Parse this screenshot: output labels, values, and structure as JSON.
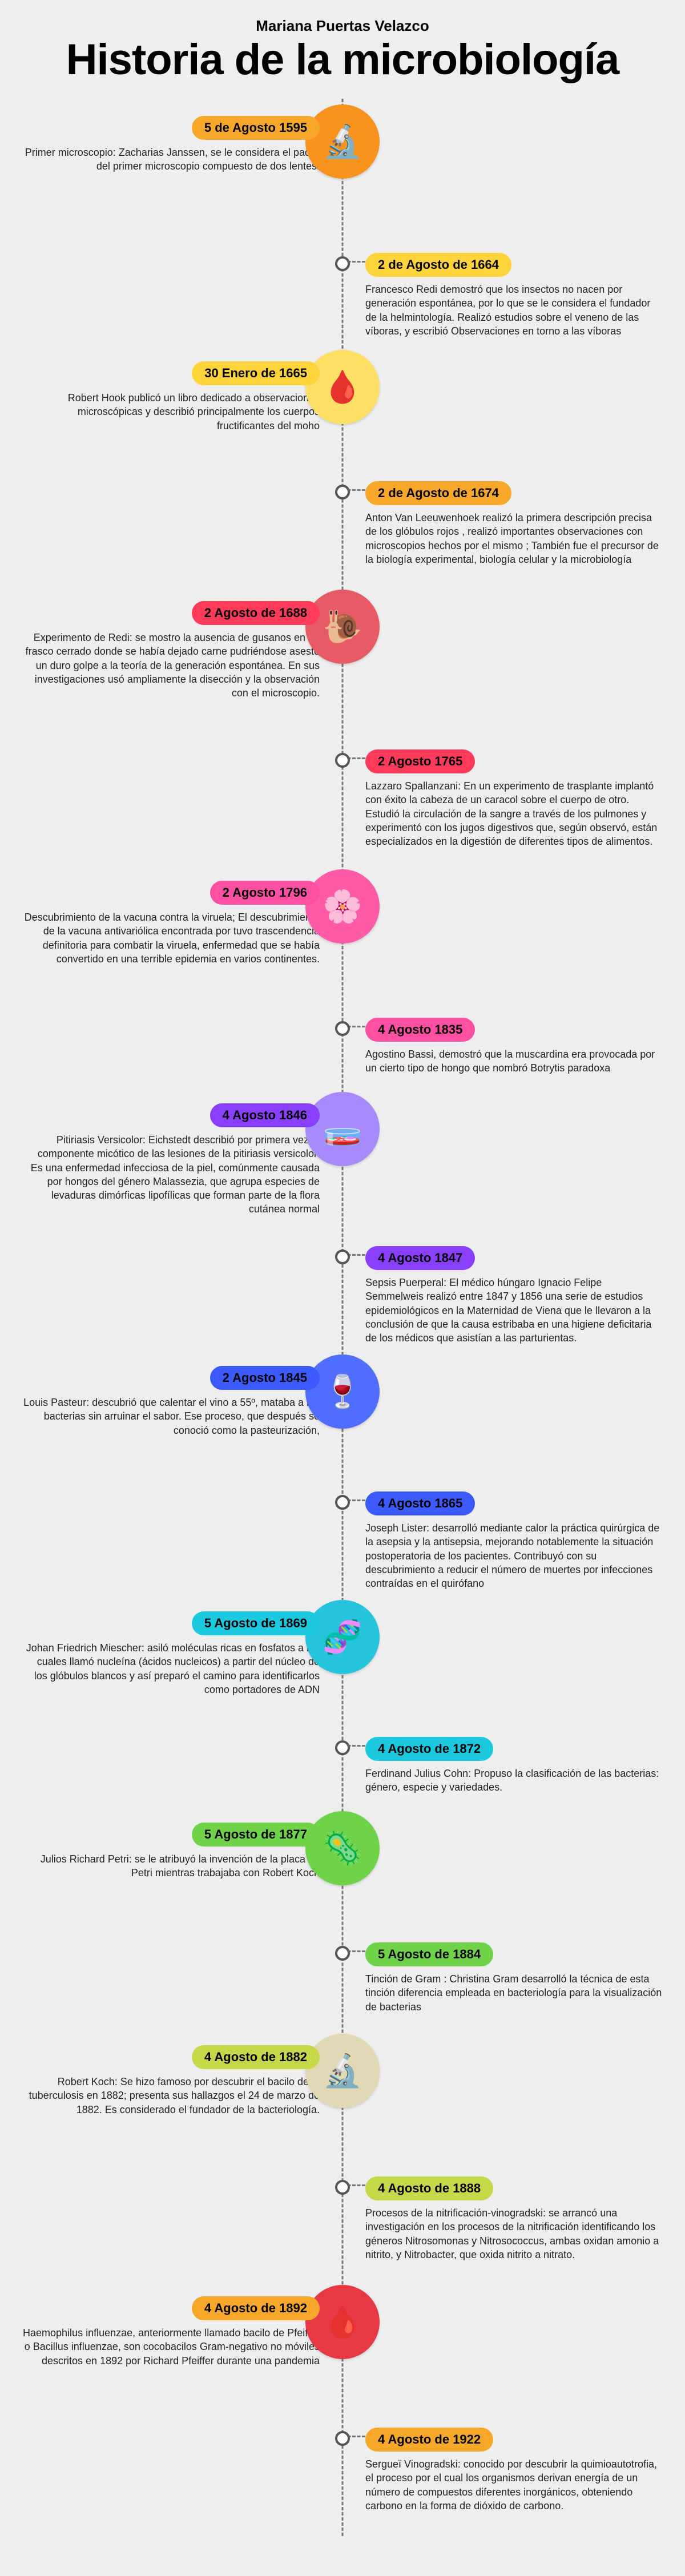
{
  "author": "Mariana Puertas Velazco",
  "title": "Historia de la microbiología",
  "background_color": "#eeeeee",
  "timeline_line_color": "#777777",
  "entries": [
    {
      "side": "left",
      "date": "5 de Agosto 1595",
      "pill_color": "#f7a82b",
      "text": "Primer microscopio: Zacharias Janssen, se le considera el padre del primer microscopio compuesto de dos lentes.",
      "center": "icon",
      "icon_bg": "#f7931e",
      "icon": "🔬",
      "icon_name": "microscope-icon",
      "min_h": 230
    },
    {
      "side": "right",
      "date": "2 de  Agosto de 1664",
      "pill_color": "#ffd43b",
      "text": "Francesco Redi demostró que los insectos no nacen por generación espontánea, por lo que se le considera el fundador de la helmintología. Realizó estudios sobre el veneno de las víboras, y escribió Observaciones en torno a las víboras",
      "center": "dot",
      "min_h": 180
    },
    {
      "side": "left",
      "date": "30 Enero de 1665",
      "pill_color": "#ffd43b",
      "text": "Robert Hook publicó un libro dedicado a observaciones microscópicas y describió principalmente los cuerpos fructificantes del moho",
      "center": "icon",
      "icon_bg": "#ffe066",
      "icon": "🩸",
      "icon_name": "blood-cells-icon",
      "min_h": 200
    },
    {
      "side": "right",
      "date": "2 de Agosto  de 1674",
      "pill_color": "#f7a82b",
      "text": "Anton Van Leeuwenhoek realizó  la primera descripción precisa de los glóbulos rojos , realizó importantes observaciones con microscopios hechos por el mismo ; También fue el precursor de la biología experimental, biología celular y la microbiología",
      "center": "dot",
      "min_h": 200
    },
    {
      "side": "left",
      "date": "2 Agosto de 1688",
      "pill_color": "#ff3b5c",
      "text": "Experimento de Redi: se mostro la ausencia de gusanos en un frasco cerrado donde se había dejado carne pudriéndose asestó un duro golpe a la teoría de la generación espontánea. En sus investigaciones usó ampliamente la disección y la observación con el microscopio.",
      "center": "icon",
      "icon_bg": "#e65b65",
      "icon": "🐌",
      "icon_name": "snail-icon",
      "min_h": 250
    },
    {
      "side": "right",
      "date": "2 Agosto 1765",
      "pill_color": "#ff3b5c",
      "text": "Lazzaro Spallanzani: En un experimento de trasplante implantó con éxito la cabeza de un caracol sobre el cuerpo de otro. Estudió la circulación de la sangre a través de los pulmones y experimentó con los jugos digestivos que, según observó, están especializados en la digestión de diferentes tipos de alimentos.",
      "center": "dot",
      "min_h": 220
    },
    {
      "side": "left",
      "date": "2 Agosto 1796",
      "pill_color": "#ff4fa3",
      "text": "Descubrimiento de la vacuna contra la viruela; El descubrimiento de la vacuna antivariólica encontrada por  tuvo trascendencia definitoria para combatir la viruela, enfermedad que se había convertido en una terrible epidemia en varios continentes.",
      "center": "icon",
      "icon_bg": "#ff5ca8",
      "icon": "🌸",
      "icon_name": "flower-icon",
      "min_h": 230
    },
    {
      "side": "right",
      "date": "4 Agosto 1835",
      "pill_color": "#ff4fa3",
      "text": "Agostino Bassi, demostró que la muscardina era provocada por un cierto tipo de hongo que nombró Botrytis paradoxa",
      "center": "dot",
      "min_h": 140
    },
    {
      "side": "left",
      "date": "4 Agosto 1846",
      "pill_color": "#8a3ffc",
      "text": "Pitiriasis Versicolor:  Eichstedt describió por primera vez el componente micótico de las lesiones de la pitiriasis versicolor. Es una enfermedad infecciosa de la piel, comúnmente causada por hongos del género Malassezia, que agrupa especies de levaduras dimórficas lipofílicas que forman parte de la flora cutánea normal",
      "center": "icon",
      "icon_bg": "#a78bfa",
      "icon": "🧫",
      "icon_name": "petri-dish-icon",
      "min_h": 240
    },
    {
      "side": "right",
      "date": "4 Agosto 1847",
      "pill_color": "#8a3ffc",
      "text": "Sepsis Puerperal: El médico húngaro Ignacio Felipe Semmelweis realizó entre 1847 y 1856 una serie de estudios epidemiológicos en la Maternidad de Viena que le llevaron a la conclusión de que la causa estribaba en una higiene deficitaria de los médicos que asistían a las parturientas.",
      "center": "dot",
      "min_h": 200
    },
    {
      "side": "left",
      "date": "2 Agosto 1845",
      "pill_color": "#3b5bff",
      "text": "Louis Pasteur: descubrió que calentar el vino a 55º, mataba a las bacterias sin arruinar el sabor. Ese proceso, que después se conoció como la pasteurización,",
      "center": "icon",
      "icon_bg": "#4f6dff",
      "icon": "🍷",
      "icon_name": "wine-icon",
      "min_h": 210
    },
    {
      "side": "right",
      "date": "4 Agosto 1865",
      "pill_color": "#3b5bff",
      "text": "Joseph Lister: desarrolló mediante calor la práctica quirúrgica de la asepsia y la antisepsia, mejorando notablemente la situación postoperatoria de los pacientes. Contribuyó con su descubrimiento a reducir el número de muertes por infecciones contraídas en el quirófano",
      "center": "dot",
      "min_h": 200
    },
    {
      "side": "left",
      "date": "5 Agosto de 1869",
      "pill_color": "#1cc8e0",
      "text": "Johan Friedrich Miescher: asiló moléculas ricas en fosfatos a las cuales llamó nucleína (ácidos nucleicos) a partir del núcleo de los glóbulos blancos y así preparó el camino para identificarlos como portadores de ADN",
      "center": "icon",
      "icon_bg": "#26c3dc",
      "icon": "🧬",
      "icon_name": "dna-icon",
      "min_h": 210
    },
    {
      "side": "right",
      "date": "4 Agosto de 1872",
      "pill_color": "#1cc8e0",
      "text": "Ferdinand Julius Cohn: Propuso la clasificación de las bacterias: género, especie y variedades.",
      "center": "dot",
      "min_h": 140
    },
    {
      "side": "left",
      "date": "5 Agosto de 1877",
      "pill_color": "#6fd34a",
      "text": "Julios Richard Petri: se le atribuyó la invención de la placa de Petri mientras trabajaba con Robert Koch",
      "center": "icon",
      "icon_bg": "#6fd34a",
      "icon": "🦠",
      "icon_name": "microbe-icon",
      "min_h": 200
    },
    {
      "side": "right",
      "date": "5 Agosto de 1884",
      "pill_color": "#6fd34a",
      "text": "Tinción de Gram : Christina Gram desarrolló la técnica de esta tinción diferencia empleada en bacteriología para la visualización de bacterias",
      "center": "dot",
      "min_h": 170
    },
    {
      "side": "left",
      "date": "4 Agosto de 1882",
      "pill_color": "#c6d84a",
      "text": "Robert Koch: Se hizo famoso por descubrir el bacilo de la tuberculosis en 1882; presenta sus hallazgos el 24 de marzo de 1882. Es considerado el fundador de la bacteriología.",
      "center": "icon",
      "icon_bg": "#e0d9b3",
      "icon": "🔬",
      "icon_name": "bacillus-icon",
      "min_h": 220
    },
    {
      "side": "right",
      "date": "4 Agosto de 1888",
      "pill_color": "#c6d84a",
      "text": "Procesos de la nitrificación-vinogradski: se arrancó una investigación en los procesos de la nitrificación identificando los géneros Nitrosomonas y Nitrosococcus, ambas oxidan amonio a nitrito, y Nitrobacter, que oxida nitrito a nitrato.",
      "center": "dot",
      "min_h": 200
    },
    {
      "side": "left",
      "date": "4 Agosto de 1892",
      "pill_color": "#f7a82b",
      "text": "Haemophilus influenzae, anteriormente llamado bacilo de Pfeiffer o Bacillus influenzae, son cocobacilos Gram-negativo no móviles descritos en 1892 por Richard Pfeiffer durante una pandemia",
      "center": "icon",
      "icon_bg": "#e63946",
      "icon": "🩸",
      "icon_name": "sample-icon",
      "min_h": 220
    },
    {
      "side": "right",
      "date": "4 Agosto de 1922",
      "pill_color": "#f7a82b",
      "text": "Sergueï Vinogradski: conocido por descubrir la quimioautotrofia, el proceso por el cual los organismos derivan energía de un número de compuestos diferentes inorgánicos, obteniendo carbono en la forma de dióxido de carbono.",
      "center": "dot",
      "min_h": 200
    }
  ]
}
